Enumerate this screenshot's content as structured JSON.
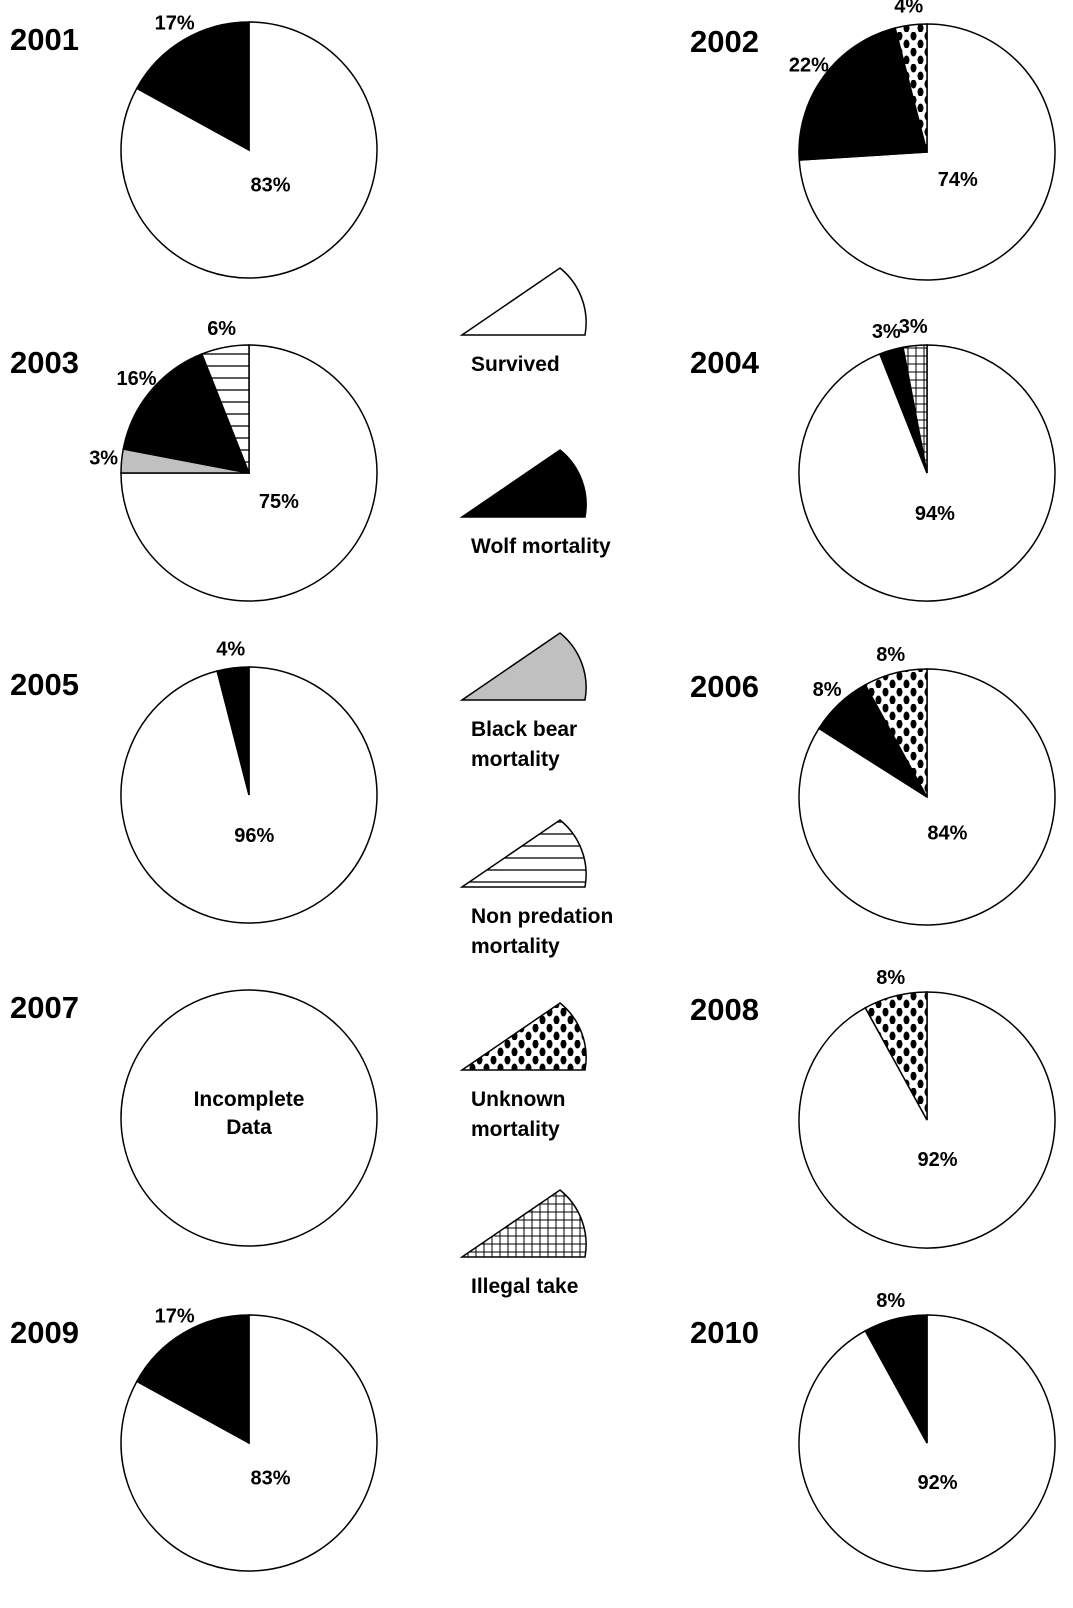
{
  "legend": [
    {
      "name": "Survived",
      "fill": "#ffffff"
    },
    {
      "name": "Wolf mortality",
      "fill": "#000000"
    },
    {
      "name": "Black bear mortality",
      "fill": "#c0c0c0"
    },
    {
      "name": "Non predation mortality",
      "pattern": "hlines"
    },
    {
      "name": "Unknown mortality",
      "pattern": "dots"
    },
    {
      "name": "Illegal take",
      "pattern": "grid"
    }
  ],
  "chart_data": [
    {
      "type": "pie",
      "title": "2001",
      "categories": [
        "Survived",
        "Wolf mortality"
      ],
      "values": [
        83,
        17
      ],
      "value_labels": [
        "83%",
        "17%"
      ]
    },
    {
      "type": "pie",
      "title": "2002",
      "categories": [
        "Survived",
        "Wolf mortality",
        "Unknown mortality"
      ],
      "values": [
        74,
        22,
        4
      ],
      "value_labels": [
        "74%",
        "22%",
        "4%"
      ]
    },
    {
      "type": "pie",
      "title": "2003",
      "categories": [
        "Survived",
        "Black bear mortality",
        "Wolf mortality",
        "Non predation mortality"
      ],
      "values": [
        75,
        3,
        16,
        6
      ],
      "value_labels": [
        "75%",
        "3%",
        "16%",
        "6%"
      ]
    },
    {
      "type": "pie",
      "title": "2004",
      "categories": [
        "Survived",
        "Wolf mortality",
        "Illegal take"
      ],
      "values": [
        94,
        3,
        3
      ],
      "value_labels": [
        "94%",
        "3%",
        "3%"
      ]
    },
    {
      "type": "pie",
      "title": "2005",
      "categories": [
        "Survived",
        "Wolf mortality"
      ],
      "values": [
        96,
        4
      ],
      "value_labels": [
        "96%",
        "4%"
      ]
    },
    {
      "type": "pie",
      "title": "2006",
      "categories": [
        "Survived",
        "Wolf mortality",
        "Unknown mortality"
      ],
      "values": [
        84,
        8,
        8
      ],
      "value_labels": [
        "84%",
        "8%",
        "8%"
      ]
    },
    {
      "type": "pie",
      "title": "2007",
      "annotation": "Incomplete Data"
    },
    {
      "type": "pie",
      "title": "2008",
      "categories": [
        "Survived",
        "Unknown mortality"
      ],
      "values": [
        92,
        8
      ],
      "value_labels": [
        "92%",
        "8%"
      ]
    },
    {
      "type": "pie",
      "title": "2009",
      "categories": [
        "Survived",
        "Wolf mortality"
      ],
      "values": [
        83,
        17
      ],
      "value_labels": [
        "83%",
        "17%"
      ]
    },
    {
      "type": "pie",
      "title": "2010",
      "categories": [
        "Survived",
        "Wolf mortality"
      ],
      "values": [
        92,
        8
      ],
      "value_labels": [
        "92%",
        "8%"
      ]
    }
  ]
}
